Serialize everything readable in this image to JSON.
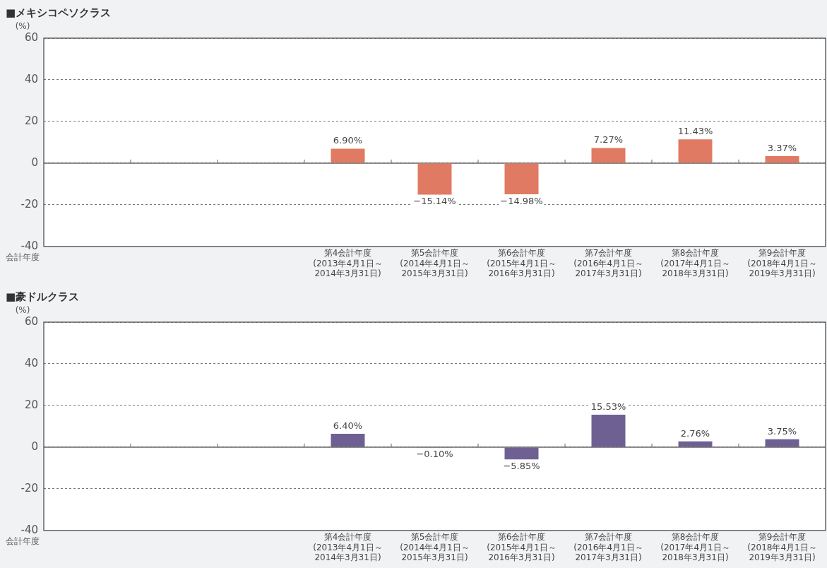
{
  "chart_data": [
    {
      "type": "bar",
      "title": "■メキシコペソクラス",
      "ylabel": "(%)",
      "xlabel": "会計年度",
      "categories": [
        null,
        null,
        null,
        "第4会計年度\n(2013年4月1日～\n2014年3月31日)",
        "第5会計年度\n(2014年4月1日～\n2015年3月31日)",
        "第6会計年度\n(2015年4月1日～\n2016年3月31日)",
        "第7会計年度\n(2016年4月1日～\n2017年3月31日)",
        "第8会計年度\n(2017年4月1日～\n2018年3月31日)",
        "第9会計年度\n(2018年4月1日～\n2019年3月31日)"
      ],
      "values": [
        null,
        null,
        null,
        6.9,
        -15.14,
        -14.98,
        7.27,
        11.43,
        3.37
      ],
      "value_labels": [
        null,
        null,
        null,
        "6.90%",
        "−15.14%",
        "−14.98%",
        "7.27%",
        "11.43%",
        "3.37%"
      ],
      "color": "#e07a62",
      "ylim": [
        -40,
        60
      ],
      "yticks": [
        -40,
        -20,
        0,
        20,
        40,
        60
      ],
      "grid": "y",
      "legend": false
    },
    {
      "type": "bar",
      "title": "■豪ドルクラス",
      "ylabel": "(%)",
      "xlabel": "会計年度",
      "categories": [
        null,
        null,
        null,
        "第4会計年度\n(2013年4月1日～\n2014年3月31日)",
        "第5会計年度\n(2014年4月1日～\n2015年3月31日)",
        "第6会計年度\n(2015年4月1日～\n2016年3月31日)",
        "第7会計年度\n(2016年4月1日～\n2017年3月31日)",
        "第8会計年度\n(2017年4月1日～\n2018年3月31日)",
        "第9会計年度\n(2018年4月1日～\n2019年3月31日)"
      ],
      "values": [
        null,
        null,
        null,
        6.4,
        -0.1,
        -5.85,
        15.53,
        2.76,
        3.75
      ],
      "value_labels": [
        null,
        null,
        null,
        "6.40%",
        "−0.10%",
        "−5.85%",
        "15.53%",
        "2.76%",
        "3.75%"
      ],
      "color": "#6f6094",
      "ylim": [
        -40,
        60
      ],
      "yticks": [
        -40,
        -20,
        0,
        20,
        40,
        60
      ],
      "grid": "y",
      "legend": false
    }
  ]
}
